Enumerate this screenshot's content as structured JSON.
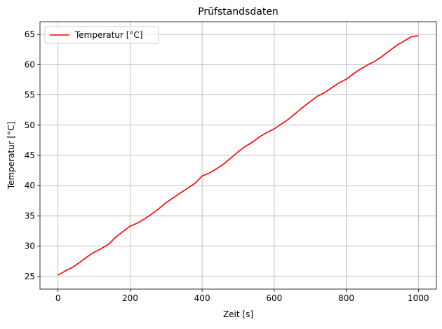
{
  "chart_data": {
    "type": "line",
    "title": "Prüfstandsdaten",
    "xlabel": "Zeit [s]",
    "ylabel": "Temperatur [°C]",
    "xlim": [
      -50,
      1050
    ],
    "ylim": [
      22.9,
      67.1
    ],
    "xticks": [
      0,
      200,
      400,
      600,
      800,
      1000
    ],
    "yticks": [
      25,
      30,
      35,
      40,
      45,
      50,
      55,
      60,
      65
    ],
    "grid": true,
    "legend": {
      "position": "top-left"
    },
    "series": [
      {
        "name": "Temperatur [°C]",
        "color": "#ff0000",
        "x": [
          0,
          20,
          40,
          60,
          80,
          100,
          120,
          140,
          160,
          180,
          200,
          220,
          240,
          260,
          280,
          300,
          320,
          340,
          360,
          380,
          400,
          420,
          440,
          460,
          480,
          500,
          520,
          540,
          560,
          580,
          600,
          620,
          640,
          660,
          680,
          700,
          720,
          740,
          760,
          780,
          800,
          820,
          840,
          860,
          880,
          900,
          920,
          940,
          960,
          980,
          1000
        ],
        "values": [
          25.2,
          25.9,
          26.5,
          27.3,
          28.2,
          29.0,
          29.6,
          30.3,
          31.5,
          32.4,
          33.3,
          33.8,
          34.5,
          35.3,
          36.2,
          37.2,
          38.0,
          38.8,
          39.6,
          40.4,
          41.6,
          42.1,
          42.8,
          43.6,
          44.6,
          45.6,
          46.5,
          47.2,
          48.1,
          48.8,
          49.4,
          50.2,
          51.0,
          52.0,
          53.0,
          53.9,
          54.8,
          55.4,
          56.2,
          57.0,
          57.6,
          58.5,
          59.3,
          60.0,
          60.6,
          61.4,
          62.3,
          63.2,
          63.9,
          64.6,
          64.8
        ]
      }
    ]
  }
}
